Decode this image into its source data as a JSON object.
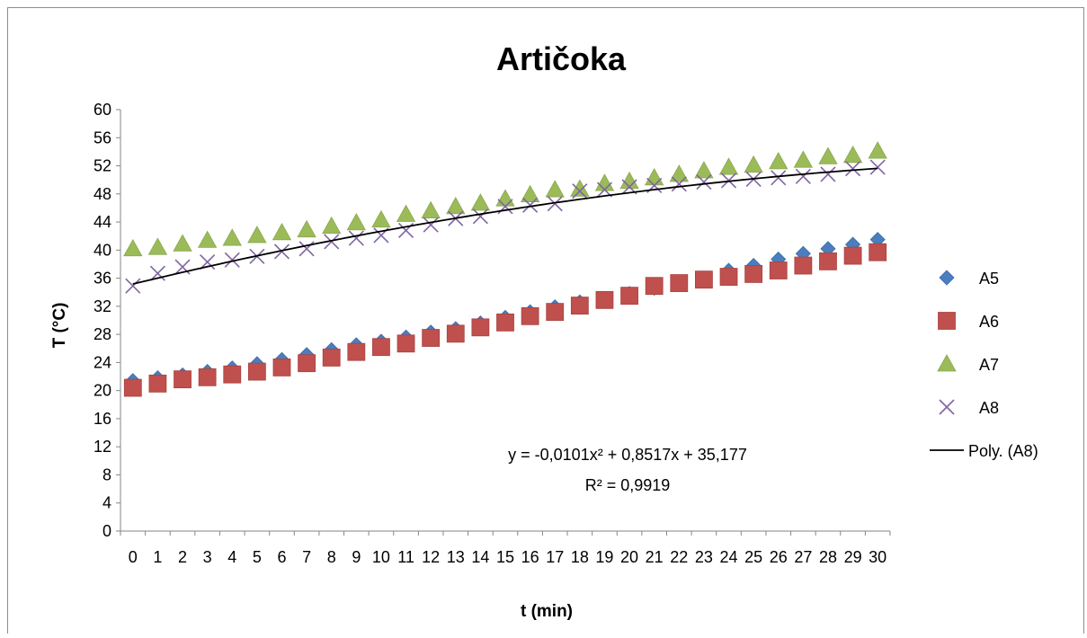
{
  "chart_data": {
    "type": "scatter",
    "title": "Artičoka",
    "xlabel": "t (min)",
    "ylabel": "T (°C)",
    "xlim": [
      0,
      30
    ],
    "ylim": [
      0,
      60
    ],
    "x_ticks": [
      "0",
      "1",
      "2",
      "3",
      "4",
      "5",
      "6",
      "7",
      "8",
      "9",
      "10",
      "11",
      "12",
      "13",
      "14",
      "15",
      "16",
      "17",
      "18",
      "19",
      "20",
      "21",
      "22",
      "23",
      "24",
      "25",
      "26",
      "27",
      "28",
      "29",
      "30"
    ],
    "y_ticks": [
      "0",
      "4",
      "8",
      "12",
      "16",
      "20",
      "24",
      "28",
      "32",
      "36",
      "40",
      "44",
      "48",
      "52",
      "56",
      "60"
    ],
    "grid": false,
    "legend_position": "right",
    "x": [
      0,
      1,
      2,
      3,
      4,
      5,
      6,
      7,
      8,
      9,
      10,
      11,
      12,
      13,
      14,
      15,
      16,
      17,
      18,
      19,
      20,
      21,
      22,
      23,
      24,
      25,
      26,
      27,
      28,
      29,
      30
    ],
    "series": [
      {
        "name": "A5",
        "marker": "diamond",
        "color": "#4a7ebf",
        "values": [
          21.4,
          21.8,
          22.2,
          22.7,
          23.2,
          23.8,
          24.4,
          25.1,
          25.8,
          26.5,
          27.0,
          27.6,
          28.3,
          28.8,
          29.6,
          30.4,
          31.2,
          31.9,
          32.6,
          33.1,
          33.8,
          34.6,
          35.4,
          36.0,
          37.1,
          37.8,
          38.7,
          39.5,
          40.2,
          40.8,
          41.5
        ]
      },
      {
        "name": "A6",
        "marker": "square",
        "color": "#c0504d",
        "values": [
          20.4,
          21.0,
          21.6,
          21.9,
          22.3,
          22.7,
          23.3,
          23.9,
          24.7,
          25.5,
          26.2,
          26.7,
          27.5,
          28.1,
          29.0,
          29.7,
          30.6,
          31.2,
          32.1,
          32.9,
          33.5,
          34.9,
          35.3,
          35.8,
          36.2,
          36.6,
          37.1,
          37.8,
          38.4,
          39.2,
          39.7
        ]
      },
      {
        "name": "A7",
        "marker": "triangle",
        "color": "#9bbb59",
        "values": [
          40.2,
          40.4,
          40.9,
          41.4,
          41.7,
          42.1,
          42.5,
          42.9,
          43.4,
          43.9,
          44.3,
          45.1,
          45.6,
          46.2,
          46.7,
          47.3,
          47.9,
          48.6,
          48.7,
          49.5,
          49.8,
          50.3,
          50.8,
          51.3,
          51.8,
          52.1,
          52.6,
          52.8,
          53.3,
          53.5,
          54.1
        ]
      },
      {
        "name": "A8",
        "marker": "x",
        "color": "#8064a2",
        "values": [
          34.9,
          36.7,
          37.6,
          38.3,
          38.6,
          39.1,
          39.8,
          40.2,
          41.2,
          41.7,
          42.1,
          42.8,
          43.6,
          44.5,
          44.8,
          46.2,
          46.4,
          46.6,
          48.4,
          48.6,
          49.0,
          49.2,
          49.4,
          49.7,
          49.9,
          50.1,
          50.3,
          50.5,
          50.8,
          51.6,
          51.8
        ]
      }
    ],
    "trendline": {
      "name": "Poly. (A8)",
      "type": "polynomial",
      "color": "#000000",
      "coefficients": [
        35.177,
        0.8517,
        -0.0101
      ],
      "equation": "y = -0,0101x² + 0,8517x + 35,177",
      "r_squared": "R² = 0,9919"
    }
  }
}
